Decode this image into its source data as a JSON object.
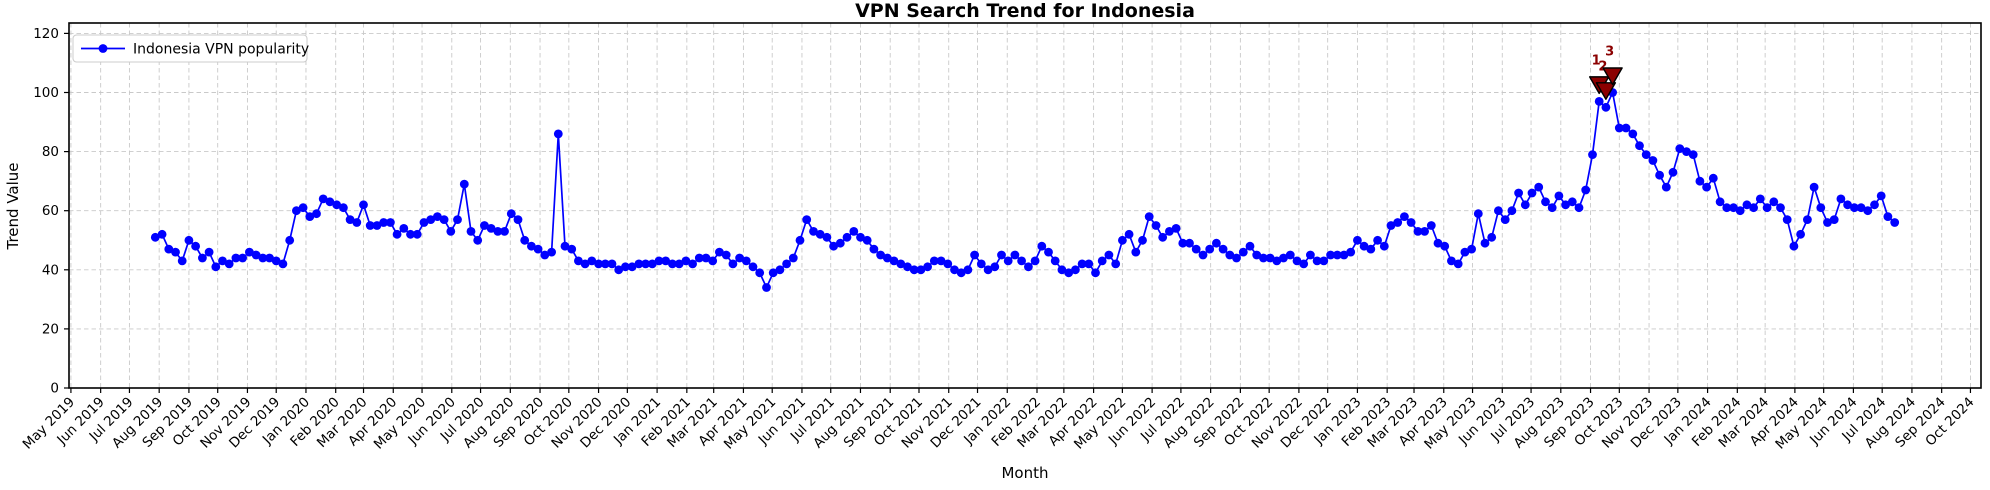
{
  "colors": {
    "line": "#0000ff",
    "marker": "#0000ff",
    "annotation_fill": "#8b0000",
    "annotation_edge": "#000000",
    "annotation_text": "#8b0000",
    "grid": "#c9c9c9",
    "spine": "#000000",
    "background": "#ffffff",
    "legend_border": "#cccccc"
  },
  "legend": {
    "label": "Indonesia VPN popularity"
  },
  "chart_data": {
    "type": "line",
    "title": "VPN Search Trend for Indonesia",
    "xlabel": "Month",
    "ylabel": "Trend Value",
    "ylim": [
      0,
      120
    ],
    "yticks": [
      0,
      20,
      40,
      60,
      80,
      100,
      120
    ],
    "grid": true,
    "grid_style": "dashed",
    "legend_position": "upper left",
    "xlim": [
      "2019-04-29",
      "2024-10-12"
    ],
    "xticks": [
      {
        "date": "2019-05-01",
        "label": "May 2019"
      },
      {
        "date": "2019-06-01",
        "label": "Jun 2019"
      },
      {
        "date": "2019-07-01",
        "label": "Jul 2019"
      },
      {
        "date": "2019-08-01",
        "label": "Aug 2019"
      },
      {
        "date": "2019-09-01",
        "label": "Sep 2019"
      },
      {
        "date": "2019-10-01",
        "label": "Oct 2019"
      },
      {
        "date": "2019-11-01",
        "label": "Nov 2019"
      },
      {
        "date": "2019-12-01",
        "label": "Dec 2019"
      },
      {
        "date": "2020-01-01",
        "label": "Jan 2020"
      },
      {
        "date": "2020-02-01",
        "label": "Feb 2020"
      },
      {
        "date": "2020-03-01",
        "label": "Mar 2020"
      },
      {
        "date": "2020-04-01",
        "label": "Apr 2020"
      },
      {
        "date": "2020-05-01",
        "label": "May 2020"
      },
      {
        "date": "2020-06-01",
        "label": "Jun 2020"
      },
      {
        "date": "2020-07-01",
        "label": "Jul 2020"
      },
      {
        "date": "2020-08-01",
        "label": "Aug 2020"
      },
      {
        "date": "2020-09-01",
        "label": "Sep 2020"
      },
      {
        "date": "2020-10-01",
        "label": "Oct 2020"
      },
      {
        "date": "2020-11-01",
        "label": "Nov 2020"
      },
      {
        "date": "2020-12-01",
        "label": "Dec 2020"
      },
      {
        "date": "2021-01-01",
        "label": "Jan 2021"
      },
      {
        "date": "2021-02-01",
        "label": "Feb 2021"
      },
      {
        "date": "2021-03-01",
        "label": "Mar 2021"
      },
      {
        "date": "2021-04-01",
        "label": "Apr 2021"
      },
      {
        "date": "2021-05-01",
        "label": "May 2021"
      },
      {
        "date": "2021-06-01",
        "label": "Jun 2021"
      },
      {
        "date": "2021-07-01",
        "label": "Jul 2021"
      },
      {
        "date": "2021-08-01",
        "label": "Aug 2021"
      },
      {
        "date": "2021-09-01",
        "label": "Sep 2021"
      },
      {
        "date": "2021-10-01",
        "label": "Oct 2021"
      },
      {
        "date": "2021-11-01",
        "label": "Nov 2021"
      },
      {
        "date": "2021-12-01",
        "label": "Dec 2021"
      },
      {
        "date": "2022-01-01",
        "label": "Jan 2022"
      },
      {
        "date": "2022-02-01",
        "label": "Feb 2022"
      },
      {
        "date": "2022-03-01",
        "label": "Mar 2022"
      },
      {
        "date": "2022-04-01",
        "label": "Apr 2022"
      },
      {
        "date": "2022-05-01",
        "label": "May 2022"
      },
      {
        "date": "2022-06-01",
        "label": "Jun 2022"
      },
      {
        "date": "2022-07-01",
        "label": "Jul 2022"
      },
      {
        "date": "2022-08-01",
        "label": "Aug 2022"
      },
      {
        "date": "2022-09-01",
        "label": "Sep 2022"
      },
      {
        "date": "2022-10-01",
        "label": "Oct 2022"
      },
      {
        "date": "2022-11-01",
        "label": "Nov 2022"
      },
      {
        "date": "2022-12-01",
        "label": "Dec 2022"
      },
      {
        "date": "2023-01-01",
        "label": "Jan 2023"
      },
      {
        "date": "2023-02-01",
        "label": "Feb 2023"
      },
      {
        "date": "2023-03-01",
        "label": "Mar 2023"
      },
      {
        "date": "2023-04-01",
        "label": "Apr 2023"
      },
      {
        "date": "2023-05-01",
        "label": "May 2023"
      },
      {
        "date": "2023-06-01",
        "label": "Jun 2023"
      },
      {
        "date": "2023-07-01",
        "label": "Jul 2023"
      },
      {
        "date": "2023-08-01",
        "label": "Aug 2023"
      },
      {
        "date": "2023-09-01",
        "label": "Sep 2023"
      },
      {
        "date": "2023-10-01",
        "label": "Oct 2023"
      },
      {
        "date": "2023-11-01",
        "label": "Nov 2023"
      },
      {
        "date": "2023-12-01",
        "label": "Dec 2023"
      },
      {
        "date": "2024-01-01",
        "label": "Jan 2024"
      },
      {
        "date": "2024-02-01",
        "label": "Feb 2024"
      },
      {
        "date": "2024-03-01",
        "label": "Mar 2024"
      },
      {
        "date": "2024-04-01",
        "label": "Apr 2024"
      },
      {
        "date": "2024-05-01",
        "label": "May 2024"
      },
      {
        "date": "2024-06-01",
        "label": "Jun 2024"
      },
      {
        "date": "2024-07-01",
        "label": "Jul 2024"
      },
      {
        "date": "2024-08-01",
        "label": "Aug 2024"
      },
      {
        "date": "2024-09-01",
        "label": "Sep 2024"
      },
      {
        "date": "2024-10-01",
        "label": "Oct 2024"
      }
    ],
    "series": [
      {
        "name": "Indonesia VPN popularity",
        "color": "#0000ff",
        "interval": "weekly",
        "start_date": "2019-07-28",
        "end_date": "2024-07-14",
        "values": [
          51,
          52,
          47,
          46,
          43,
          50,
          48,
          44,
          46,
          41,
          43,
          42,
          44,
          44,
          46,
          45,
          44,
          44,
          43,
          42,
          50,
          60,
          61,
          58,
          59,
          64,
          63,
          62,
          61,
          57,
          56,
          62,
          55,
          55,
          56,
          56,
          52,
          54,
          52,
          52,
          56,
          57,
          58,
          57,
          53,
          57,
          69,
          53,
          50,
          55,
          54,
          53,
          53,
          59,
          57,
          50,
          48,
          47,
          45,
          46,
          86,
          48,
          47,
          43,
          42,
          43,
          42,
          42,
          42,
          40,
          41,
          41,
          42,
          42,
          42,
          43,
          43,
          42,
          42,
          43,
          42,
          44,
          44,
          43,
          46,
          45,
          42,
          44,
          43,
          41,
          39,
          34,
          39,
          40,
          42,
          44,
          50,
          57,
          53,
          52,
          51,
          48,
          49,
          51,
          53,
          51,
          50,
          47,
          45,
          44,
          43,
          42,
          41,
          40,
          40,
          41,
          43,
          43,
          42,
          40,
          39,
          40,
          45,
          42,
          40,
          41,
          45,
          43,
          45,
          43,
          41,
          43,
          48,
          46,
          43,
          40,
          39,
          40,
          42,
          42,
          39,
          43,
          45,
          42,
          50,
          52,
          46,
          50,
          58,
          55,
          51,
          53,
          54,
          49,
          49,
          47,
          45,
          47,
          49,
          47,
          45,
          44,
          46,
          48,
          45,
          44,
          44,
          43,
          44,
          45,
          43,
          42,
          45,
          43,
          43,
          45,
          45,
          45,
          46,
          50,
          48,
          47,
          50,
          48,
          55,
          56,
          58,
          56,
          53,
          53,
          55,
          49,
          48,
          43,
          42,
          46,
          47,
          59,
          49,
          51,
          60,
          57,
          60,
          66,
          62,
          66,
          68,
          63,
          61,
          65,
          62,
          63,
          61,
          67,
          79,
          97,
          95,
          100,
          88,
          88,
          86,
          82,
          79,
          77,
          72,
          68,
          73,
          81,
          80,
          79,
          70,
          68,
          71,
          63,
          61,
          61,
          60,
          62,
          61,
          64,
          61,
          63,
          61,
          57,
          48,
          52,
          57,
          68,
          61,
          56,
          57,
          64,
          62,
          61,
          61,
          60,
          62,
          65,
          58,
          56
        ]
      }
    ],
    "annotations": [
      {
        "label": "1",
        "date": "2023-09-10",
        "value": 97
      },
      {
        "label": "2",
        "date": "2023-09-17",
        "value": 95
      },
      {
        "label": "3",
        "date": "2023-09-24",
        "value": 100
      }
    ]
  }
}
